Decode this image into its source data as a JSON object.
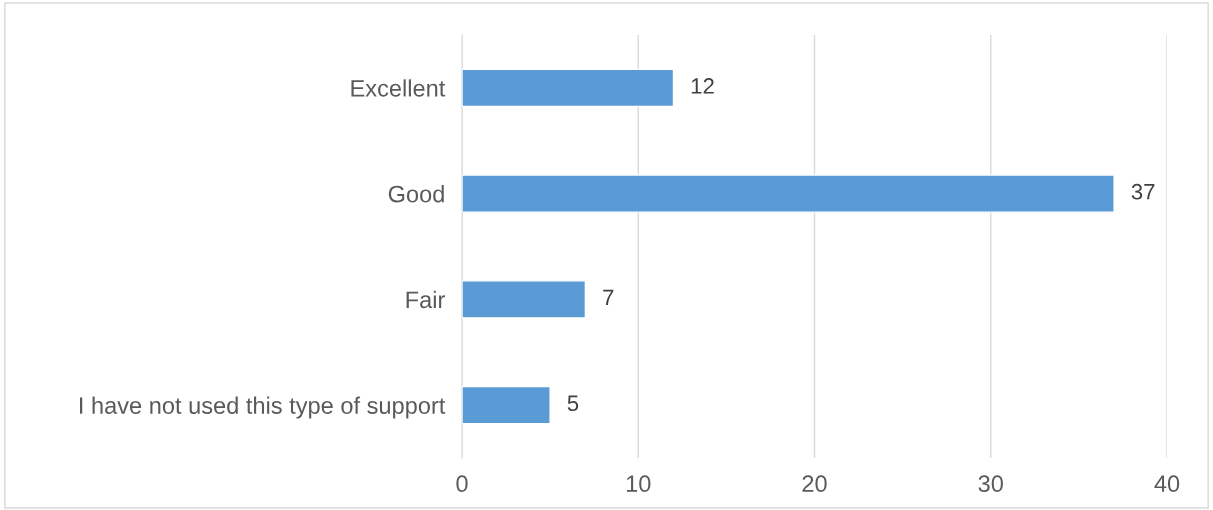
{
  "chart_data": {
    "type": "bar",
    "orientation": "horizontal",
    "categories": [
      "Excellent",
      "Good",
      "Fair",
      "I have not used this type of support"
    ],
    "values": [
      12,
      37,
      7,
      5
    ],
    "color": "#5b9bd5",
    "xlim": [
      0,
      40
    ],
    "xticks": [
      0,
      10,
      20,
      30,
      40
    ],
    "grid": "x",
    "data_labels": true
  }
}
